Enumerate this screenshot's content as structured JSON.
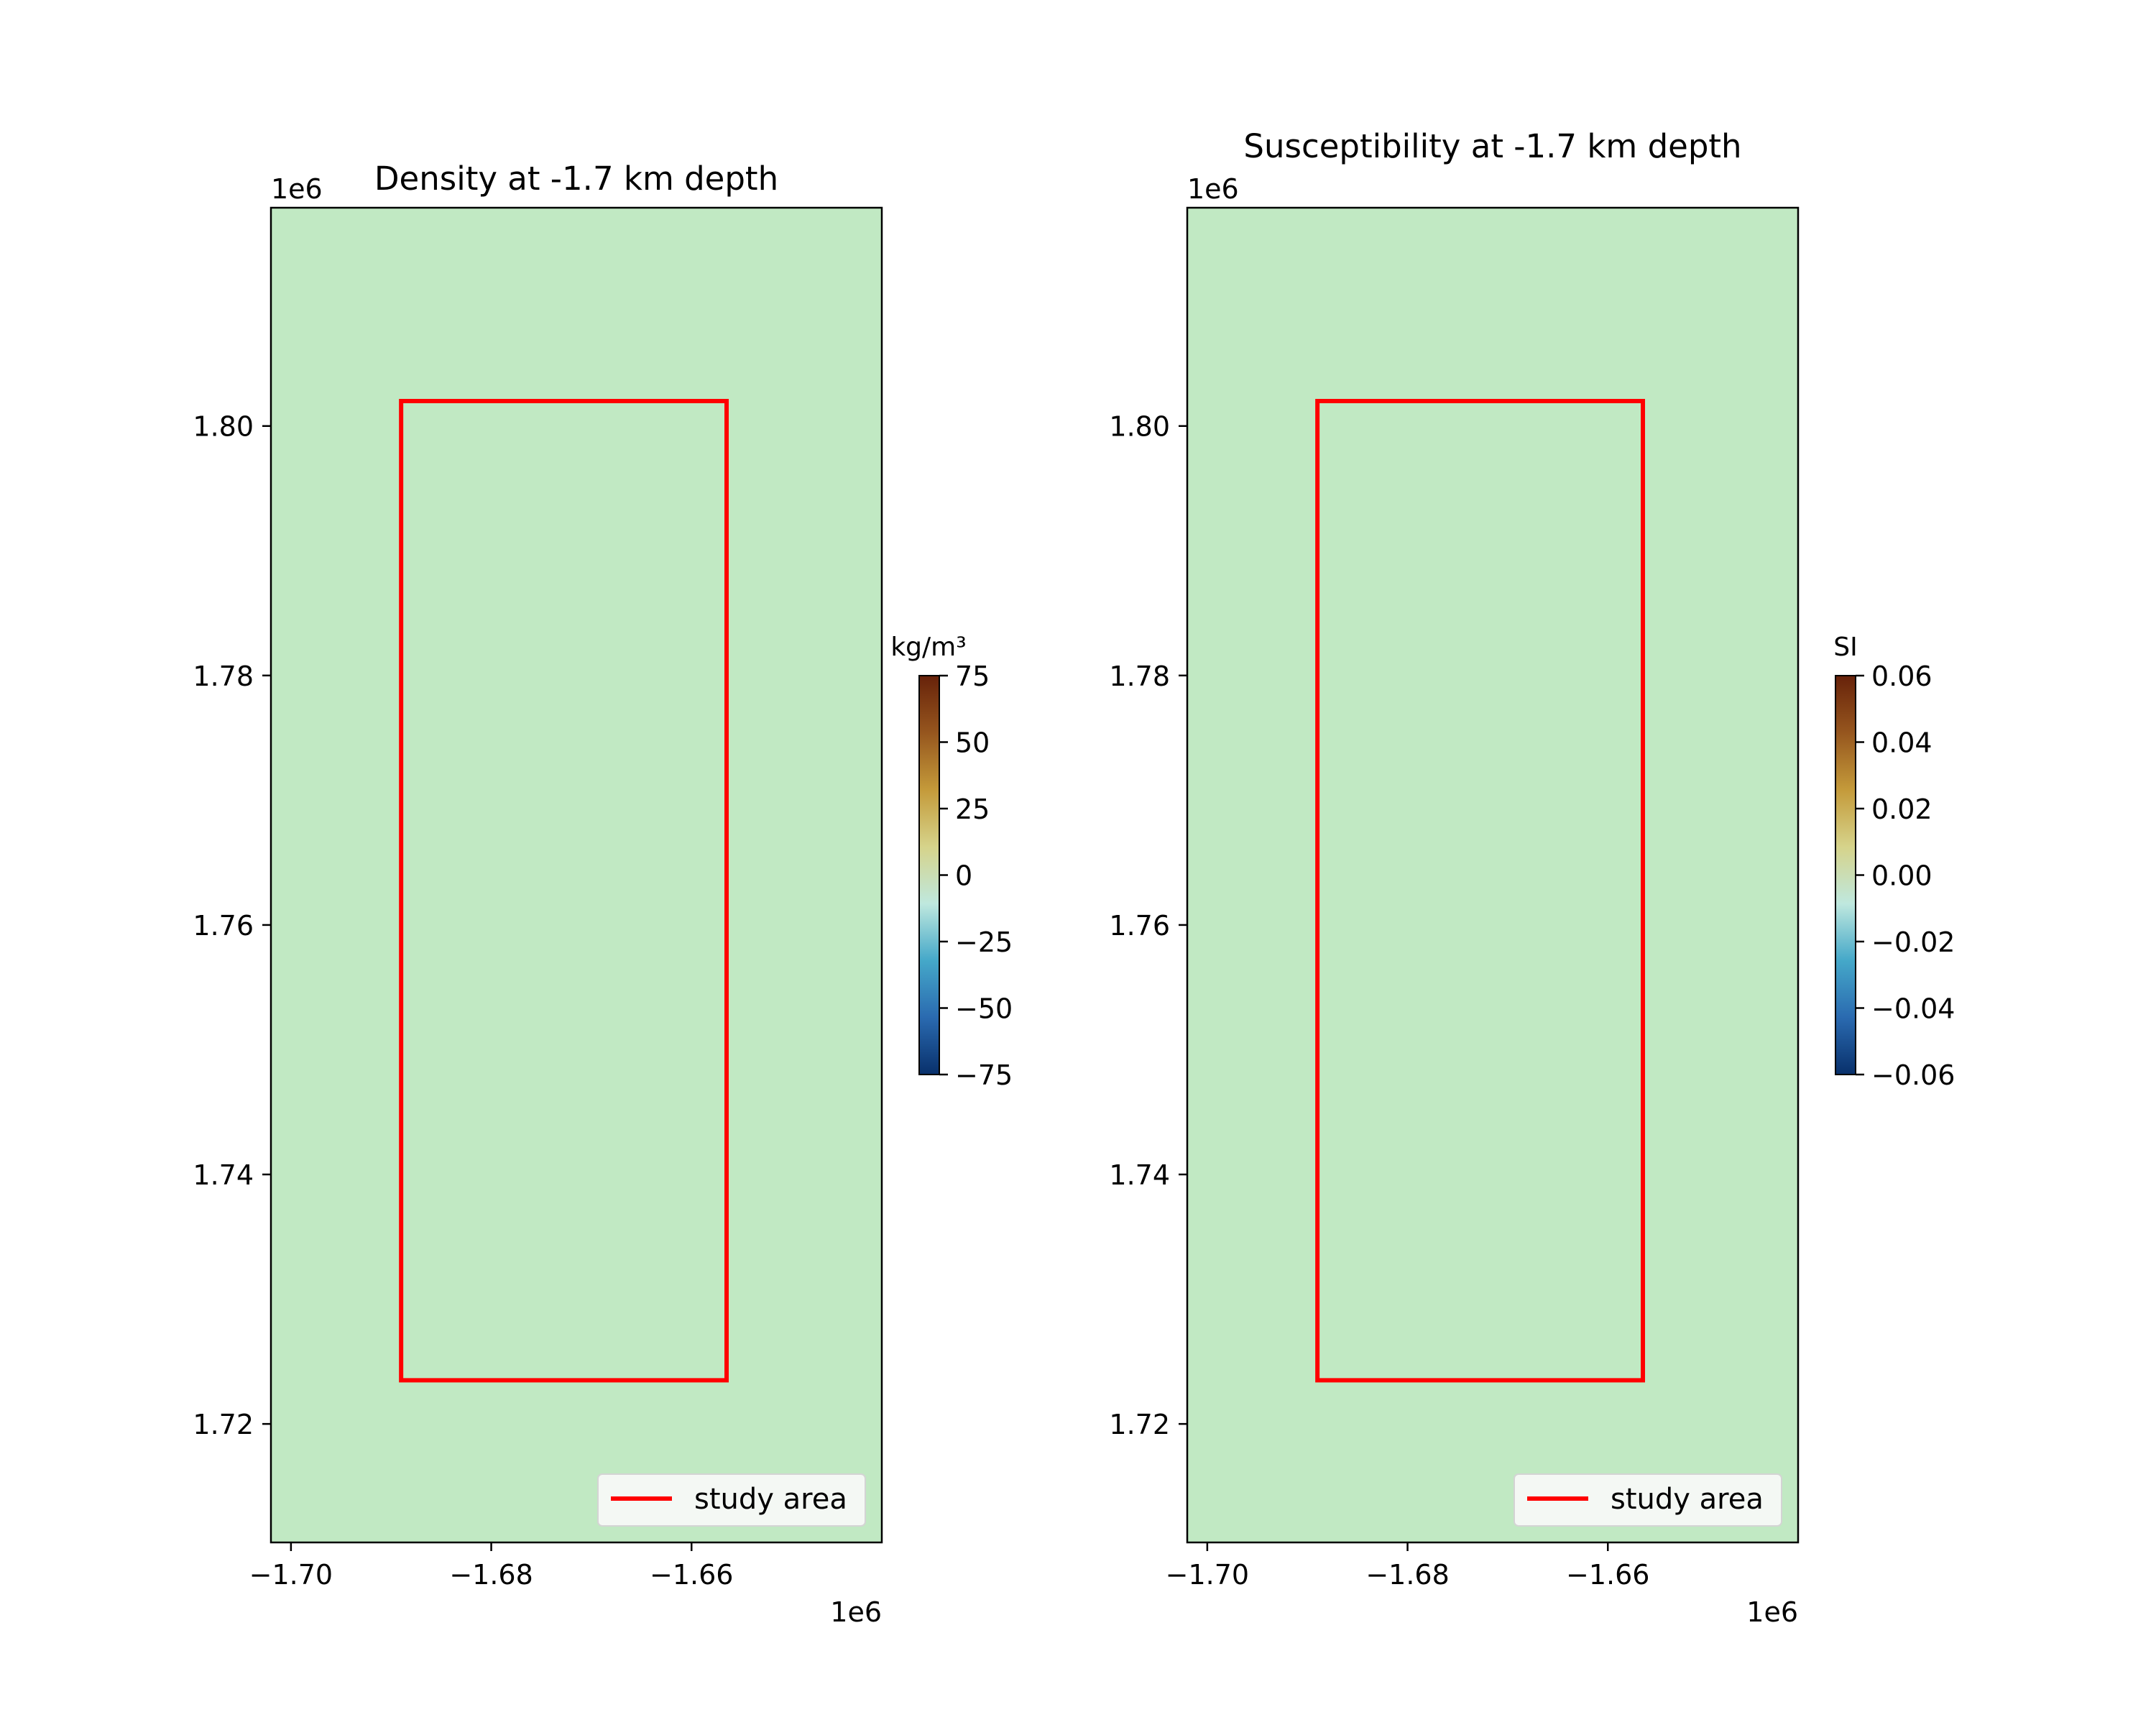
{
  "colors": {
    "field": "#c1e9c3",
    "study_area": "#ff0000",
    "colormap": [
      "#08306b",
      "#2a6ab0",
      "#45a8c9",
      "#bfe8de",
      "#d6d38a",
      "#c49a3a",
      "#96561e",
      "#67220a"
    ]
  },
  "chart_data": [
    {
      "type": "heatmap",
      "title": "Density at -1.7 km depth",
      "x_range": [
        -1702000,
        -1641000
      ],
      "y_range": [
        1710500,
        1817500
      ],
      "x_ticks": [
        -1.7,
        -1.68,
        -1.66
      ],
      "x_tick_labels": [
        "−1.70",
        "−1.68",
        "−1.66"
      ],
      "y_ticks": [
        1.72,
        1.74,
        1.76,
        1.78,
        1.8
      ],
      "y_tick_labels": [
        "1.72",
        "1.74",
        "1.76",
        "1.78",
        "1.80"
      ],
      "x_offset_label": "1e6",
      "y_offset_label": "1e6",
      "field_value": 0,
      "study_area": {
        "x": [
          -1689000,
          -1656500
        ],
        "y": [
          1723500,
          1802000
        ]
      },
      "legend": {
        "label": "study area",
        "loc": "lower-right"
      },
      "colorbar": {
        "label": "kg/m³",
        "range": [
          -75,
          75
        ],
        "ticks": [
          75,
          50,
          25,
          0,
          -25,
          -50,
          -75
        ],
        "tick_labels": [
          "75",
          "50",
          "25",
          "0",
          "−25",
          "−50",
          "−75"
        ]
      }
    },
    {
      "type": "heatmap",
      "title": "Susceptibility at -1.7 km depth",
      "x_range": [
        -1702000,
        -1641000
      ],
      "y_range": [
        1710500,
        1817500
      ],
      "x_ticks": [
        -1.7,
        -1.68,
        -1.66
      ],
      "x_tick_labels": [
        "−1.70",
        "−1.68",
        "−1.66"
      ],
      "y_ticks": [
        1.72,
        1.74,
        1.76,
        1.78,
        1.8
      ],
      "y_tick_labels": [
        "1.72",
        "1.74",
        "1.76",
        "1.78",
        "1.80"
      ],
      "x_offset_label": "1e6",
      "y_offset_label": "1e6",
      "field_value": 0,
      "study_area": {
        "x": [
          -1689000,
          -1656500
        ],
        "y": [
          1723500,
          1802000
        ]
      },
      "legend": {
        "label": "study area",
        "loc": "lower-right"
      },
      "colorbar": {
        "label": "SI",
        "range": [
          -0.06,
          0.06
        ],
        "ticks": [
          0.06,
          0.04,
          0.02,
          0.0,
          -0.02,
          -0.04,
          -0.06
        ],
        "tick_labels": [
          "0.06",
          "0.04",
          "0.02",
          "0.00",
          "−0.02",
          "−0.04",
          "−0.06"
        ]
      }
    }
  ]
}
